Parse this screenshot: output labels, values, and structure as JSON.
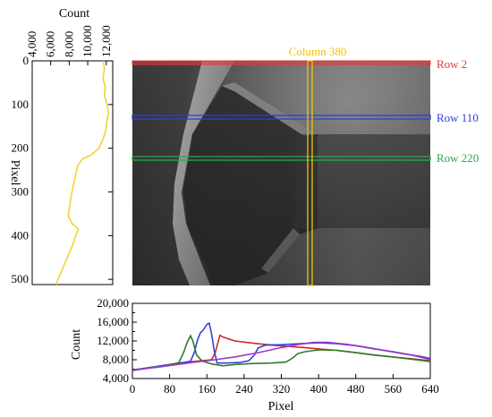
{
  "chart_data": [
    {
      "id": "left",
      "type": "line",
      "xlabel": "Count",
      "ylabel": "Pixel",
      "xticks": [
        4000,
        6000,
        8000,
        10000,
        12000
      ],
      "xtick_labels": [
        "4,000",
        "6,000",
        "8,000",
        "10,000",
        "12,000"
      ],
      "yticks": [
        0,
        100,
        200,
        300,
        400,
        500
      ],
      "xlim": [
        4000,
        12700
      ],
      "ylim": [
        0,
        512
      ],
      "series": [
        {
          "color": "#f5d130",
          "points": [
            [
              11700,
              0
            ],
            [
              11800,
              20
            ],
            [
              11650,
              40
            ],
            [
              11900,
              60
            ],
            [
              11800,
              80
            ],
            [
              12100,
              100
            ],
            [
              12250,
              120
            ],
            [
              12050,
              140
            ],
            [
              11950,
              160
            ],
            [
              11650,
              180
            ],
            [
              11200,
              200
            ],
            [
              10400,
              215
            ],
            [
              9400,
              225
            ],
            [
              8900,
              240
            ],
            [
              8700,
              260
            ],
            [
              8500,
              280
            ],
            [
              8300,
              300
            ],
            [
              8050,
              330
            ],
            [
              7900,
              355
            ],
            [
              8300,
              372
            ],
            [
              9000,
              385
            ],
            [
              8700,
              400
            ],
            [
              8400,
              420
            ],
            [
              8000,
              440
            ],
            [
              7600,
              460
            ],
            [
              7200,
              480
            ],
            [
              6900,
              495
            ],
            [
              6700,
              505
            ],
            [
              6600,
              512
            ]
          ]
        }
      ]
    },
    {
      "id": "bottom",
      "type": "line",
      "xlabel": "Pixel",
      "ylabel": "Count",
      "xticks": [
        0,
        80,
        160,
        240,
        320,
        400,
        480,
        560,
        640
      ],
      "xtick_labels": [
        "0",
        "80",
        "160",
        "240",
        "320",
        "400",
        "480",
        "560",
        "640"
      ],
      "yticks": [
        4000,
        8000,
        12000,
        16000,
        20000
      ],
      "ytick_labels": [
        "4,000",
        "8,000",
        "12,000",
        "16,000",
        "20,000"
      ],
      "minor_yticks": [
        6000,
        10000,
        14000,
        18000
      ],
      "xlim": [
        0,
        640
      ],
      "ylim": [
        4000,
        20000
      ],
      "series": [
        {
          "name": "Row 2",
          "color": "#cc2a2a",
          "points": [
            [
              0,
              5800
            ],
            [
              40,
              6300
            ],
            [
              80,
              6900
            ],
            [
              120,
              7500
            ],
            [
              160,
              7900
            ],
            [
              170,
              8000
            ],
            [
              178,
              9500
            ],
            [
              182,
              11000
            ],
            [
              188,
              13200
            ],
            [
              195,
              12800
            ],
            [
              220,
              12000
            ],
            [
              260,
              11500
            ],
            [
              300,
              11100
            ],
            [
              340,
              10800
            ],
            [
              370,
              10600
            ],
            [
              400,
              10300
            ],
            [
              440,
              10000
            ],
            [
              480,
              9500
            ],
            [
              520,
              9000
            ],
            [
              560,
              8600
            ],
            [
              600,
              8200
            ],
            [
              640,
              7800
            ]
          ]
        },
        {
          "name": "Row 110",
          "color": "#3540d8",
          "points": [
            [
              0,
              5800
            ],
            [
              40,
              6400
            ],
            [
              80,
              7000
            ],
            [
              110,
              7400
            ],
            [
              125,
              7700
            ],
            [
              133,
              9500
            ],
            [
              140,
              12200
            ],
            [
              146,
              13700
            ],
            [
              152,
              14300
            ],
            [
              160,
              15500
            ],
            [
              165,
              15800
            ],
            [
              170,
              13500
            ],
            [
              176,
              9800
            ],
            [
              182,
              7300
            ],
            [
              200,
              7300
            ],
            [
              230,
              7400
            ],
            [
              250,
              7800
            ],
            [
              262,
              9000
            ],
            [
              270,
              10500
            ],
            [
              285,
              11100
            ],
            [
              320,
              11200
            ],
            [
              360,
              11400
            ],
            [
              400,
              11600
            ],
            [
              440,
              11400
            ],
            [
              480,
              11000
            ],
            [
              520,
              10300
            ],
            [
              560,
              9700
            ],
            [
              600,
              9000
            ],
            [
              640,
              8100
            ]
          ]
        },
        {
          "name": "Row 220",
          "color": "#2f7d2a",
          "points": [
            [
              0,
              5700
            ],
            [
              40,
              6300
            ],
            [
              80,
              6900
            ],
            [
              100,
              7400
            ],
            [
              110,
              9500
            ],
            [
              118,
              11800
            ],
            [
              125,
              13100
            ],
            [
              130,
              12000
            ],
            [
              138,
              9000
            ],
            [
              150,
              7700
            ],
            [
              170,
              7100
            ],
            [
              195,
              6700
            ],
            [
              220,
              7000
            ],
            [
              260,
              7200
            ],
            [
              300,
              7300
            ],
            [
              330,
              7500
            ],
            [
              345,
              8400
            ],
            [
              355,
              9300
            ],
            [
              370,
              9700
            ],
            [
              400,
              10100
            ],
            [
              440,
              10000
            ],
            [
              480,
              9500
            ],
            [
              520,
              9000
            ],
            [
              560,
              8600
            ],
            [
              600,
              8100
            ],
            [
              640,
              7600
            ]
          ]
        },
        {
          "name": "Column 380",
          "color": "#9a38c8",
          "points": [
            [
              0,
              5800
            ],
            [
              60,
              6500
            ],
            [
              120,
              7300
            ],
            [
              170,
              7900
            ],
            [
              220,
              8600
            ],
            [
              270,
              9500
            ],
            [
              320,
              10600
            ],
            [
              360,
              11300
            ],
            [
              390,
              11700
            ],
            [
              420,
              11700
            ],
            [
              460,
              11300
            ],
            [
              500,
              10700
            ],
            [
              540,
              10000
            ],
            [
              580,
              9300
            ],
            [
              620,
              8700
            ],
            [
              640,
              8300
            ]
          ]
        }
      ]
    }
  ],
  "image_annotations": {
    "column_label": "Column 380",
    "row_labels": [
      {
        "text": "Row 2",
        "color": "#e03a3a"
      },
      {
        "text": "Row 110",
        "color": "#2f3fd8"
      },
      {
        "text": "Row 220",
        "color": "#2aa84a"
      }
    ],
    "column_color": "#f2c400"
  }
}
